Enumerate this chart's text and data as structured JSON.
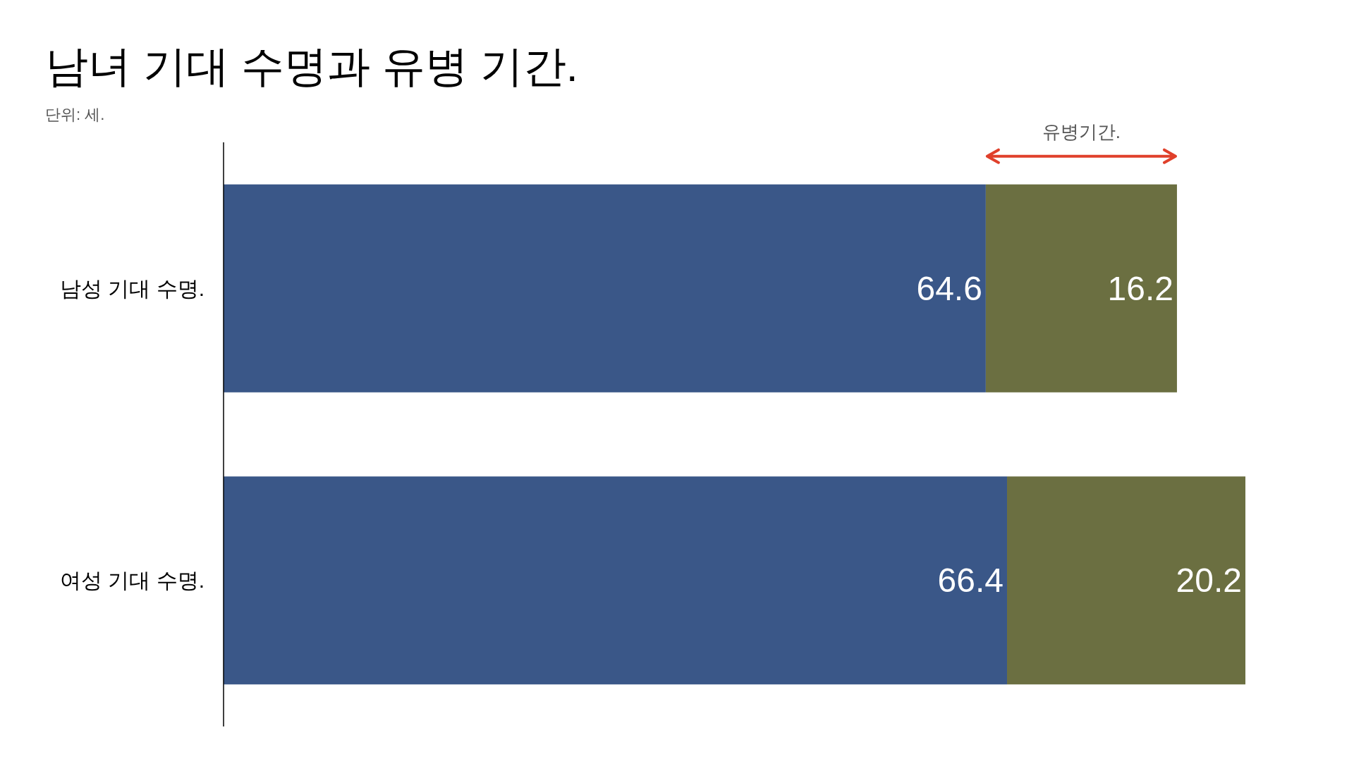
{
  "chart_data": {
    "type": "bar",
    "title": "남녀 기대 수명과 유병 기간.",
    "subtitle": "단위: 세.",
    "categories": [
      "남성 기대 수명.",
      "여성 기대 수명."
    ],
    "series": [
      {
        "color": "#3a5788",
        "values": [
          64.6,
          66.4
        ]
      },
      {
        "color": "#6b6f41",
        "values": [
          16.2,
          20.2
        ]
      }
    ],
    "stacked": true,
    "orientation": "horizontal",
    "tick_labels": "y",
    "data_labels": true,
    "annotations": [
      "유병기간."
    ]
  }
}
